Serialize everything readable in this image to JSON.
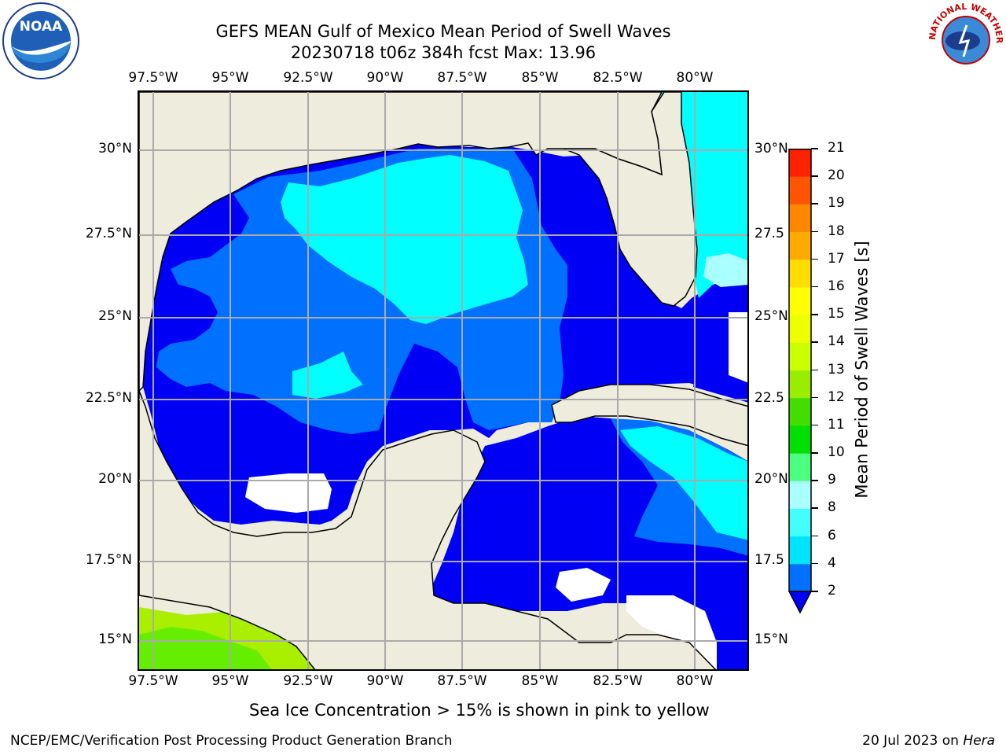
{
  "title_line1": "GEFS MEAN Gulf of Mexico Mean Period of Swell Waves",
  "title_line2": "20230718 t06z 384h fcst   Max: 13.96",
  "longitude_labels": [
    "97.5°W",
    "95°W",
    "92.5°W",
    "90°W",
    "87.5°W",
    "85°W",
    "82.5°W",
    "80°W"
  ],
  "latitude_labels_left": [
    "30°N",
    "27.5°N",
    "25°N",
    "22.5°N",
    "20°N",
    "17.5°N",
    "15°N"
  ],
  "latitude_labels_right": [
    "30°N",
    "27.5",
    "25°N",
    "22.5",
    "20°N",
    "17.5",
    "15°N"
  ],
  "colorbar": {
    "label": "Mean Period of Swell Waves [s]",
    "ticks": [
      "2",
      "4",
      "6",
      "8",
      "9",
      "10",
      "11",
      "12",
      "13",
      "14",
      "15",
      "16",
      "17",
      "18",
      "19",
      "20",
      "21"
    ],
    "colors": [
      "#0000f5",
      "#0070ff",
      "#00e5ff",
      "#44ffff",
      "#aaffff",
      "#4dff80",
      "#00e000",
      "#44dd00",
      "#99ee00",
      "#ccff00",
      "#eeff00",
      "#ffff00",
      "#ffdd00",
      "#ffaa00",
      "#ff8800",
      "#ff5500",
      "#ff2200",
      "#ff0000"
    ]
  },
  "sea_ice_note": "Sea Ice Concentration > 15% is shown in pink to yellow",
  "footer_left": "NCEP/EMC/Verification Post Processing Product Generation Branch",
  "footer_right_date": "20 Jul 2023 on",
  "footer_right_machine": "Hera",
  "logos": {
    "left": {
      "icon": "noaa-logo",
      "text": "NOAA"
    },
    "right": {
      "icon": "nws-logo",
      "text": "NATIONAL WEATHER SERVICE"
    }
  },
  "map_colors": {
    "land": "#eeecdc",
    "ocean_band_2_4": "#0000f5",
    "ocean_band_4_6": "#0070ff",
    "ocean_band_6_8": "#00ffff",
    "ocean_band_8_9": "#44ffff",
    "ocean_band_9_10": "#aaffff",
    "pacific_low": "#aaee00",
    "pacific_high": "#66ee00",
    "gridline": "#aaaaaa"
  }
}
